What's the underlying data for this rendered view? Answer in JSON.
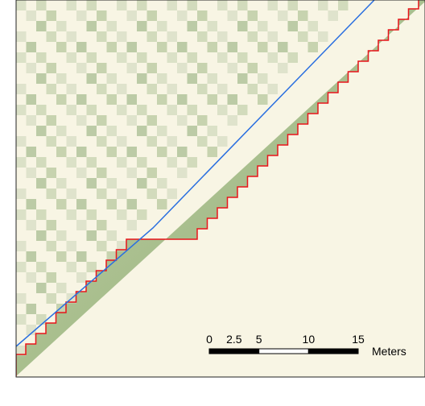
{
  "scale_bar": {
    "ticks": [
      0,
      2.5,
      5,
      10,
      15
    ],
    "unit": "Meters"
  }
}
